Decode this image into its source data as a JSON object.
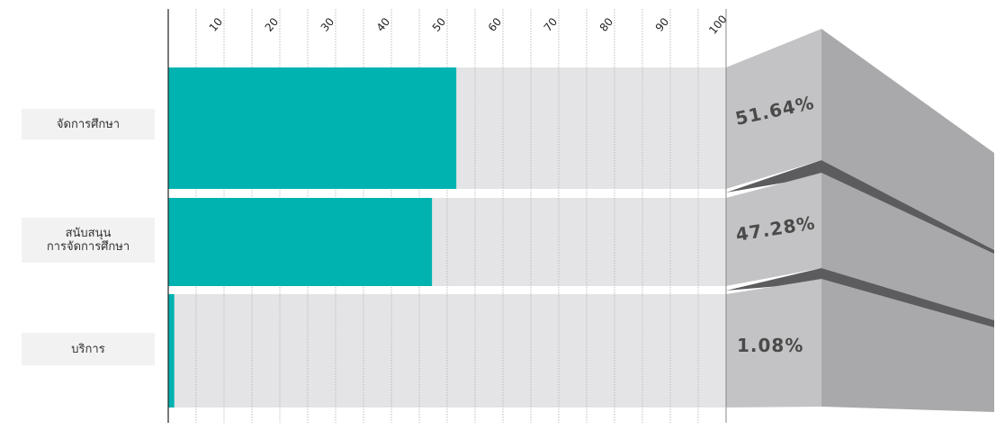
{
  "chart_data": {
    "type": "bar",
    "orientation": "horizontal",
    "categories": [
      "จัดการศึกษา",
      "สนับสนุน\nการจัดการศึกษา",
      "บริการ"
    ],
    "values": [
      51.64,
      47.28,
      1.08
    ],
    "value_labels": [
      "51.64%",
      "47.28%",
      "1.08%"
    ],
    "x_ticks": [
      "10",
      "20",
      "30",
      "40",
      "50",
      "60",
      "70",
      "80",
      "90",
      "100"
    ],
    "xlim": [
      0,
      100
    ],
    "grid": true,
    "colors": {
      "bar": "#00b3b0",
      "track": "#e4e4e6",
      "grid": "#bdbdbd",
      "face": "#c3c3c5",
      "side": "#a9a9ab",
      "shadow": "#5c5c5e"
    }
  }
}
